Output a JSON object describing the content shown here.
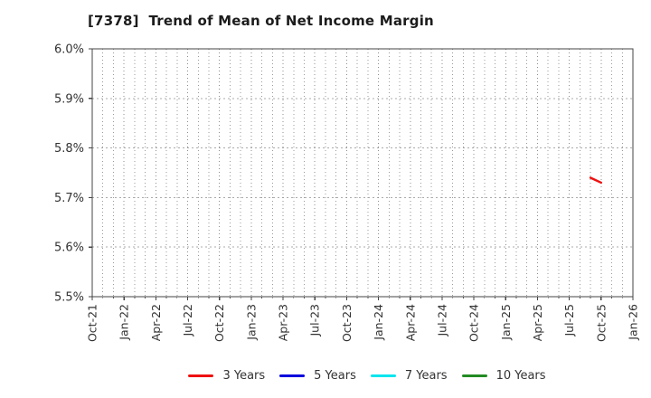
{
  "figure": {
    "title": "[7378]  Trend of Mean of Net Income Margin"
  },
  "chart_data": {
    "type": "line",
    "title": "[7378]  Trend of Mean of Net Income Margin",
    "xlabel": "",
    "ylabel": "",
    "ylim": [
      5.5,
      6.0
    ],
    "y_ticks": [
      5.5,
      5.6,
      5.7,
      5.8,
      5.9,
      6.0
    ],
    "y_tick_labels": [
      "5.5%",
      "5.6%",
      "5.7%",
      "5.8%",
      "5.9%",
      "6.0%"
    ],
    "x_tick_labels": [
      "Oct-21",
      "Jan-22",
      "Apr-22",
      "Jul-22",
      "Oct-22",
      "Jan-23",
      "Apr-23",
      "Jul-23",
      "Oct-23",
      "Jan-24",
      "Apr-24",
      "Jul-24",
      "Oct-24",
      "Jan-25",
      "Apr-25",
      "Jul-25",
      "Oct-25",
      "Jan-26"
    ],
    "months_per_tick": 3,
    "minor_vertical_grid": "monthly",
    "grid": true,
    "legend_position": "bottom-center",
    "series": [
      {
        "name": "3 Years",
        "color": "#ee1111",
        "points": [
          {
            "label": "Sep-25",
            "month_index": 47,
            "value": 5.74
          },
          {
            "label": "Oct-25",
            "month_index": 48,
            "value": 5.73
          }
        ]
      },
      {
        "name": "5 Years",
        "color": "#0000dd",
        "points": []
      },
      {
        "name": "7 Years",
        "color": "#00e5ee",
        "points": []
      },
      {
        "name": "10 Years",
        "color": "#228b22",
        "points": []
      }
    ]
  }
}
